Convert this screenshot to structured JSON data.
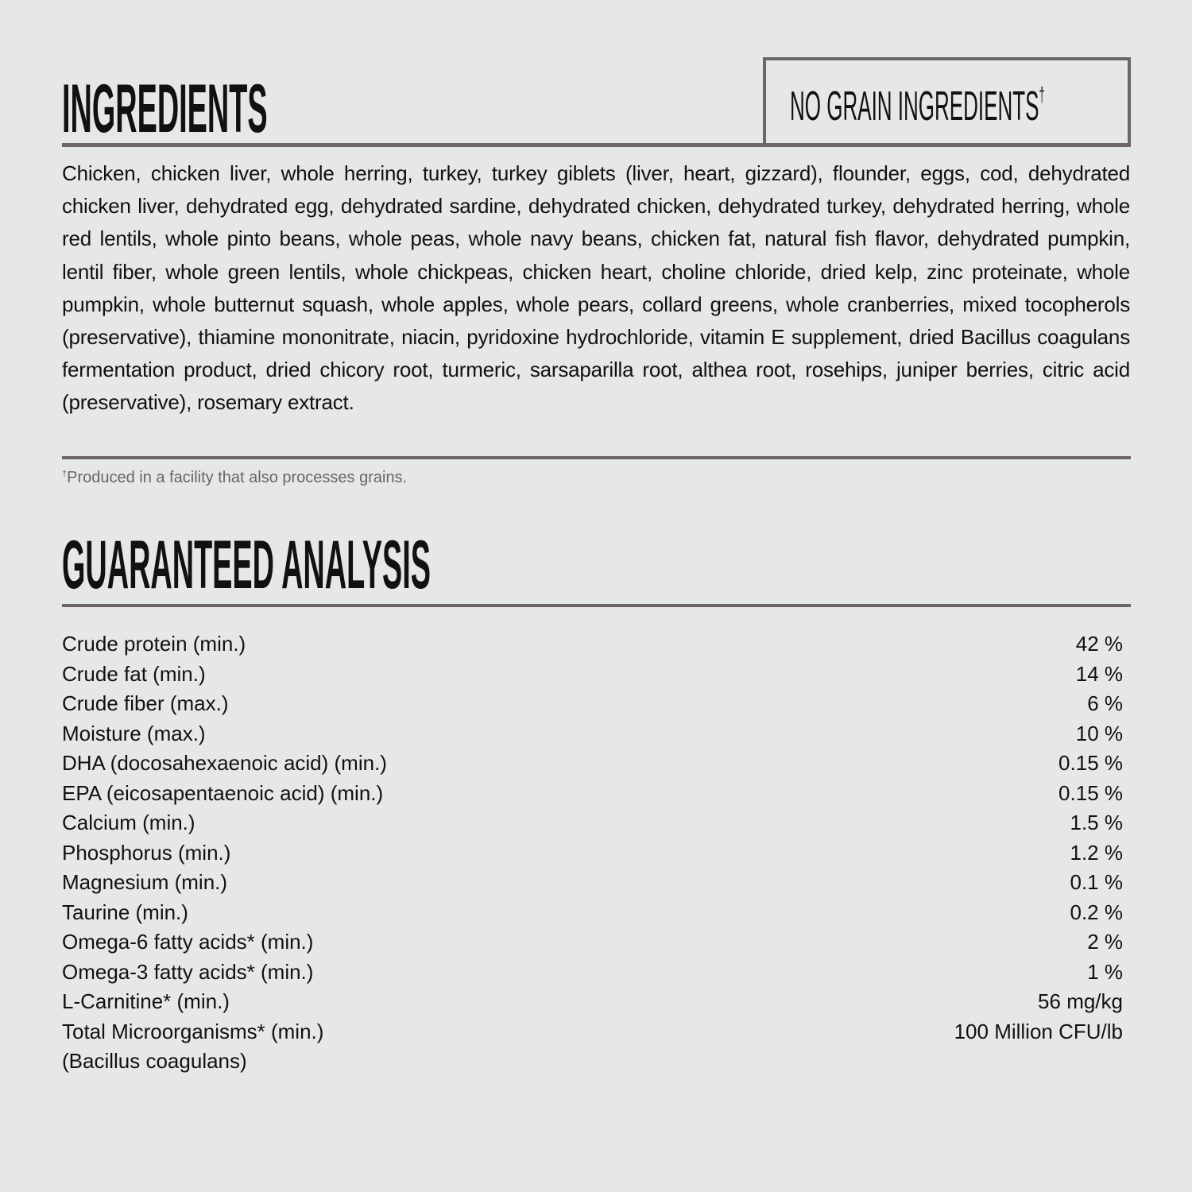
{
  "ingredients": {
    "title": "INGREDIENTS",
    "badge": "NO GRAIN INGREDIENTS",
    "badge_mark": "†",
    "text": "Chicken, chicken liver, whole herring, turkey, turkey giblets (liver, heart, gizzard), flounder, eggs, cod, dehydrated chicken liver, dehydrated egg, dehydrated sardine, dehydrated chicken, dehydrated turkey, dehydrated herring, whole red lentils, whole pinto beans, whole peas, whole navy beans, chicken fat, natural fish flavor, dehydrated pumpkin, lentil fiber, whole green lentils, whole chickpeas, chicken heart, choline chloride, dried kelp, zinc proteinate, whole pumpkin, whole butternut squash, whole apples, whole pears, collard greens, whole cranberries, mixed tocopherols (preservative), thiamine mononitrate, niacin, pyridoxine hydrochloride, vitamin E supplement, dried Bacillus coagulans fermentation product, dried chicory root, turmeric, sarsaparilla root, althea root, rosehips, juniper berries, citric acid (preservative), rosemary extract.",
    "footnote_mark": "†",
    "footnote": "Produced in a facility that also processes grains."
  },
  "analysis": {
    "title": "GUARANTEED ANALYSIS",
    "rows": [
      {
        "label": "Crude protein (min.)",
        "value": "42 %"
      },
      {
        "label": "Crude fat (min.)",
        "value": "14 %"
      },
      {
        "label": "Crude fiber (max.)",
        "value": "6 %"
      },
      {
        "label": "Moisture (max.)",
        "value": "10 %"
      },
      {
        "label": "DHA (docosahexaenoic acid) (min.)",
        "value": "0.15 %"
      },
      {
        "label": "EPA (eicosapentaenoic acid) (min.)",
        "value": "0.15 %"
      },
      {
        "label": "Calcium (min.)",
        "value": "1.5 %"
      },
      {
        "label": "Phosphorus (min.)",
        "value": "1.2 %"
      },
      {
        "label": "Magnesium (min.)",
        "value": "0.1 %"
      },
      {
        "label": "Taurine (min.)",
        "value": "0.2 %"
      },
      {
        "label": "Omega-6 fatty acids* (min.)",
        "value": "2 %"
      },
      {
        "label": "Omega-3 fatty acids* (min.)",
        "value": "1 %"
      },
      {
        "label": "L-Carnitine* (min.)",
        "value": "56 mg/kg"
      },
      {
        "label": "Total Microorganisms* (min.)",
        "value": "100 Million CFU/lb"
      },
      {
        "label": "(Bacillus coagulans)",
        "value": ""
      }
    ]
  },
  "colors": {
    "background": "#e6e7e9",
    "rule": "#6e6566",
    "text": "#111111"
  }
}
